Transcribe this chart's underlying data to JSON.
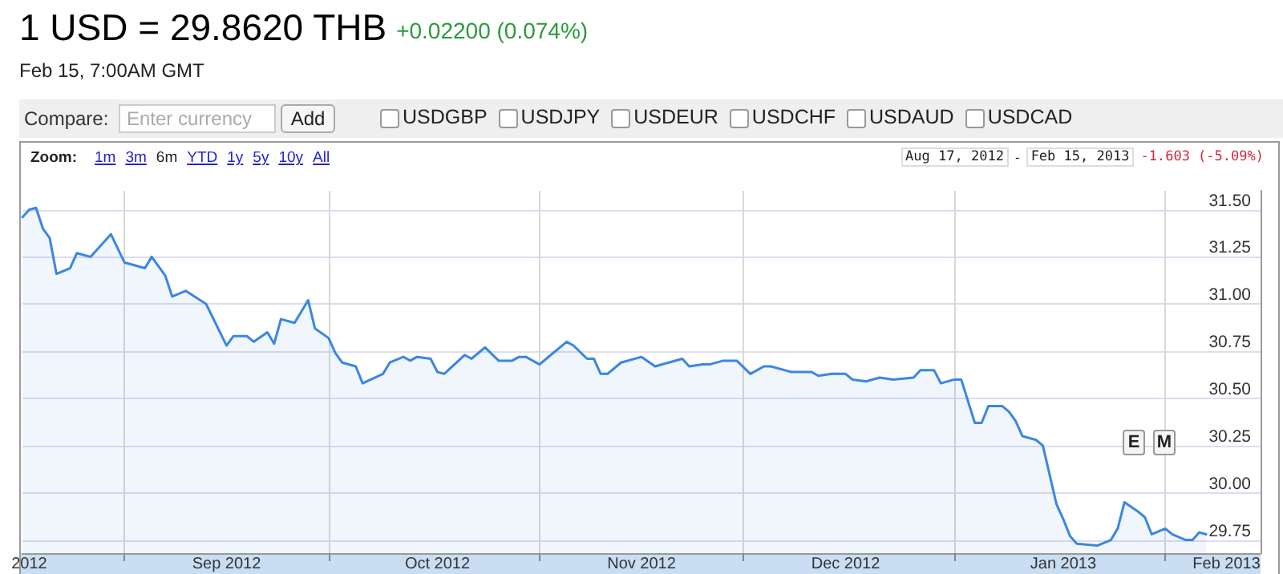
{
  "chart_data": {
    "type": "area",
    "title": "1 USD = 29.8620 THB",
    "subtitle": "Feb 15, 7:00AM GMT",
    "annotations": [
      "+0.02200 (0.074%)",
      "Compare:",
      "Enter currency",
      "Add",
      "USDGBP",
      "USDJPY",
      "USDEUR",
      "USDCHF",
      "USDAUD",
      "USDCAD",
      "Zoom:",
      "1m",
      "3m",
      "6m",
      "YTD",
      "1y",
      "5y",
      "10y",
      "All",
      "Aug 17, 2012",
      "-",
      "Feb 15, 2013",
      "-1.603 (-5.09%)",
      "E",
      "M"
    ],
    "x": [
      "2012-08-17",
      "2012-08-18",
      "2012-08-19",
      "2012-08-20",
      "2012-08-21",
      "2012-08-22",
      "2012-08-24",
      "2012-08-25",
      "2012-08-27",
      "2012-08-30",
      "2012-09-01",
      "2012-09-02",
      "2012-09-04",
      "2012-09-05",
      "2012-09-07",
      "2012-09-08",
      "2012-09-10",
      "2012-09-13",
      "2012-09-16",
      "2012-09-17",
      "2012-09-19",
      "2012-09-20",
      "2012-09-22",
      "2012-09-23",
      "2012-09-24",
      "2012-09-26",
      "2012-09-28",
      "2012-09-29",
      "2012-10-01",
      "2012-10-02",
      "2012-10-03",
      "2012-10-05",
      "2012-10-06",
      "2012-10-09",
      "2012-10-10",
      "2012-10-12",
      "2012-10-13",
      "2012-10-14",
      "2012-10-16",
      "2012-10-17",
      "2012-10-18",
      "2012-10-21",
      "2012-10-22",
      "2012-10-24",
      "2012-10-26",
      "2012-10-28",
      "2012-10-29",
      "2012-10-30",
      "2012-11-01",
      "2012-11-02",
      "2012-11-05",
      "2012-11-06",
      "2012-11-08",
      "2012-11-09",
      "2012-11-10",
      "2012-11-11",
      "2012-11-13",
      "2012-11-16",
      "2012-11-18",
      "2012-11-20",
      "2012-11-22",
      "2012-11-23",
      "2012-11-25",
      "2012-11-26",
      "2012-11-28",
      "2012-11-30",
      "2012-12-02",
      "2012-12-04",
      "2012-12-05",
      "2012-12-07",
      "2012-12-08",
      "2012-12-11",
      "2012-12-12",
      "2012-12-14",
      "2012-12-16",
      "2012-12-17",
      "2012-12-19",
      "2012-12-21",
      "2012-12-23",
      "2012-12-26",
      "2012-12-27",
      "2012-12-29",
      "2012-12-30",
      "2013-01-01",
      "2013-01-02",
      "2013-01-04",
      "2013-01-05",
      "2013-01-06",
      "2013-01-08",
      "2013-01-09",
      "2013-01-10",
      "2013-01-11",
      "2013-01-13",
      "2013-01-14",
      "2013-01-16",
      "2013-01-17",
      "2013-01-18",
      "2013-01-19",
      "2013-01-22",
      "2013-01-24",
      "2013-01-25",
      "2013-01-26",
      "2013-01-28",
      "2013-01-29",
      "2013-01-30",
      "2013-02-01",
      "2013-02-02",
      "2013-02-04",
      "2013-02-05",
      "2013-02-06",
      "2013-02-07"
    ],
    "series": [
      {
        "color": "#3b86e3",
        "values": [
          31.46,
          31.5,
          31.51,
          31.4,
          31.35,
          31.16,
          31.19,
          31.27,
          31.25,
          31.37,
          31.22,
          31.21,
          31.19,
          31.25,
          31.15,
          31.04,
          31.07,
          31.0,
          30.78,
          30.83,
          30.83,
          30.8,
          30.85,
          30.79,
          30.92,
          30.9,
          31.02,
          30.87,
          30.82,
          30.74,
          30.69,
          30.67,
          30.58,
          30.63,
          30.69,
          30.72,
          30.7,
          30.72,
          30.71,
          30.64,
          30.63,
          30.73,
          30.71,
          30.77,
          30.7,
          30.7,
          30.72,
          30.72,
          30.68,
          30.71,
          30.8,
          30.78,
          30.71,
          30.71,
          30.63,
          30.63,
          30.69,
          30.72,
          30.67,
          30.69,
          30.71,
          30.67,
          30.68,
          30.68,
          30.7,
          30.7,
          30.63,
          30.67,
          30.67,
          30.65,
          30.64,
          30.64,
          30.62,
          30.63,
          30.63,
          30.6,
          30.59,
          30.61,
          30.6,
          30.61,
          30.65,
          30.65,
          30.58,
          30.6,
          30.6,
          30.37,
          30.37,
          30.46,
          30.46,
          30.43,
          30.38,
          30.3,
          30.28,
          30.25,
          29.94,
          29.86,
          29.77,
          29.73,
          29.72,
          29.75,
          29.81,
          29.95,
          29.9,
          29.87,
          29.78,
          29.81,
          29.78,
          29.75,
          29.75,
          29.79,
          29.78
        ]
      }
    ],
    "xlim": [
      "2012-08-17",
      "2013-02-15"
    ],
    "xticks": [
      {
        "value": "2012-08-18",
        "label": "2012"
      },
      {
        "value": "2012-09-01",
        "label": null
      },
      {
        "value": "2012-09-16",
        "label": "Sep 2012"
      },
      {
        "value": "2012-10-01",
        "label": null
      },
      {
        "value": "2012-10-17",
        "label": "Oct 2012"
      },
      {
        "value": "2012-11-01",
        "label": null
      },
      {
        "value": "2012-11-16",
        "label": "Nov 2012"
      },
      {
        "value": "2012-12-01",
        "label": null
      },
      {
        "value": "2012-12-16",
        "label": "Dec 2012"
      },
      {
        "value": "2013-01-01",
        "label": null
      },
      {
        "value": "2013-01-17",
        "label": "Jan 2013"
      },
      {
        "value": "2013-02-01",
        "label": null
      },
      {
        "value": "2013-02-10",
        "label": "Feb 2013"
      }
    ],
    "ylim": [
      29.68,
      31.6
    ],
    "yticks": [
      {
        "value": 29.75,
        "label": "29.75"
      },
      {
        "value": 30,
        "label": "30.00"
      },
      {
        "value": 30.25,
        "label": "30.25"
      },
      {
        "value": 30.5,
        "label": "30.50"
      },
      {
        "value": 30.75,
        "label": "30.75"
      },
      {
        "value": 31,
        "label": "31.00"
      },
      {
        "value": 31.25,
        "label": "31.25"
      },
      {
        "value": 31.5,
        "label": "31.50"
      }
    ],
    "grid": true,
    "marker": "none",
    "line_style": "solid"
  }
}
